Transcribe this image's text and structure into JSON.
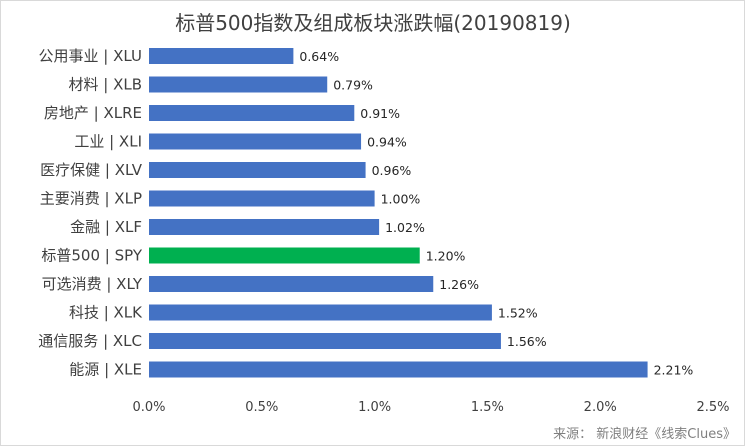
{
  "chart_data": {
    "type": "bar",
    "orientation": "horizontal",
    "title": "标普500指数及组成板块涨跌幅(20190819)",
    "categories": [
      "公用事业 | XLU",
      "材料 | XLB",
      "房地产 | XLRE",
      "工业 | XLI",
      "医疗保健 | XLV",
      "主要消费 | XLP",
      "金融 | XLF",
      "标普500 | SPY",
      "可选消费 | XLY",
      "科技 | XLK",
      "通信服务 | XLC",
      "能源 | XLE"
    ],
    "values": [
      0.64,
      0.79,
      0.91,
      0.94,
      0.96,
      1.0,
      1.02,
      1.2,
      1.26,
      1.52,
      1.56,
      2.21
    ],
    "value_labels": [
      "0.64%",
      "0.79%",
      "0.91%",
      "0.94%",
      "0.96%",
      "1.00%",
      "1.02%",
      "1.20%",
      "1.26%",
      "1.52%",
      "1.56%",
      "2.21%"
    ],
    "highlight_category": "标普500 | SPY",
    "xlim": [
      0,
      2.5
    ],
    "xticks": [
      0,
      0.5,
      1.0,
      1.5,
      2.0,
      2.5
    ],
    "xtick_labels": [
      "0.0%",
      "0.5%",
      "1.0%",
      "1.5%",
      "2.0%",
      "2.5%"
    ],
    "xlabel": "",
    "ylabel": "",
    "grid": false,
    "legend": "none",
    "colors": {
      "bar": "#4472c4",
      "highlight": "#00b050"
    }
  },
  "source": "来源：  新浪财经《线索Clues》"
}
